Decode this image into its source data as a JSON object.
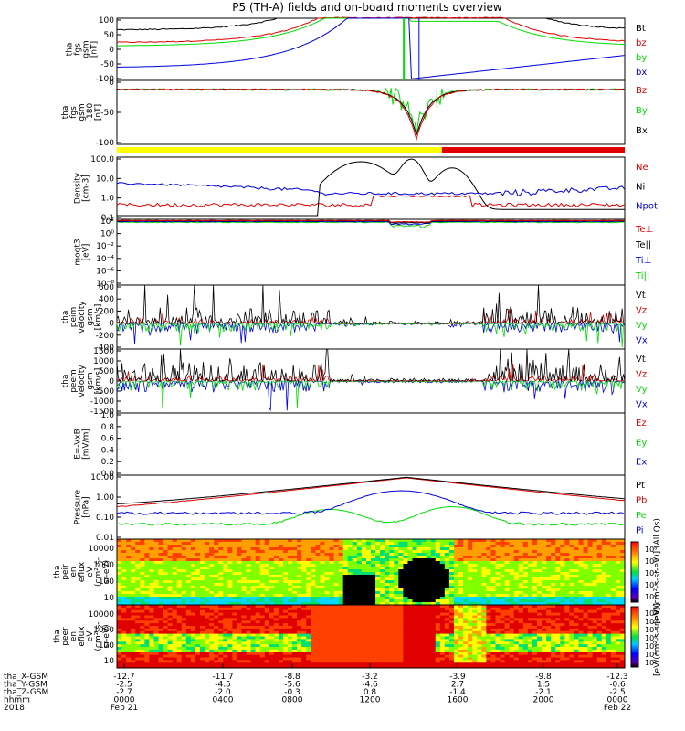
{
  "title": "P5 (TH-A) fields and on-board moments overview",
  "colors": {
    "black": "#000000",
    "red": "#e00000",
    "green": "#00dd00",
    "blue": "#0000e0",
    "yellow": "#ffff00"
  },
  "chart_data": [
    {
      "type": "line",
      "ylabel_lines": [
        "tha",
        "fgs",
        "gsm",
        "[nT]"
      ],
      "ylim": [
        -100,
        100
      ],
      "yticks": [
        "100",
        "50",
        "0",
        "-50",
        "-100"
      ],
      "legend": [
        {
          "name": "Bt",
          "color": "#000000"
        },
        {
          "name": "bz",
          "color": "#e00000"
        },
        {
          "name": "by",
          "color": "#00dd00"
        },
        {
          "name": "bx",
          "color": "#0000e0"
        }
      ]
    },
    {
      "type": "line",
      "ylabel_lines": [
        "tha",
        "fgs",
        "gsm",
        "-180",
        "[nT]"
      ],
      "ylim": [
        -120,
        20
      ],
      "yticks": [
        "0",
        "-50",
        "-100"
      ],
      "legend": [
        {
          "name": "Bz",
          "color": "#e00000"
        },
        {
          "name": "By",
          "color": "#00dd00"
        },
        {
          "name": "Bx",
          "color": "#000000"
        }
      ]
    },
    {
      "type": "line",
      "ylabel_lines": [
        "Density",
        "[cm-3]"
      ],
      "scale": "log",
      "ylim": [
        0.1,
        100
      ],
      "yticks": [
        "100.0",
        "10.0",
        "1.0",
        "0.1"
      ],
      "legend": [
        {
          "name": "Ne",
          "color": "#e00000"
        },
        {
          "name": "Ni",
          "color": "#000000"
        },
        {
          "name": "Npot",
          "color": "#0000e0"
        }
      ]
    },
    {
      "type": "line",
      "ylabel_lines": [
        "moqt3",
        "[eV]"
      ],
      "scale": "log",
      "ylim": [
        1e-08,
        100.0
      ],
      "yticks": [
        "10²",
        "10⁰",
        "10⁻²",
        "10⁻⁴",
        "10⁻⁶",
        "10⁻⁸"
      ],
      "legend": [
        {
          "name": "Te⊥",
          "color": "#e00000"
        },
        {
          "name": "Te||",
          "color": "#000000"
        },
        {
          "name": "Ti⊥",
          "color": "#0000e0"
        },
        {
          "name": "Ti||",
          "color": "#00dd00"
        }
      ]
    },
    {
      "type": "line",
      "ylabel_lines": [
        "tha",
        "peim",
        "velocity",
        "gsm",
        "[km/s]"
      ],
      "ylim": [
        -400,
        600
      ],
      "yticks": [
        "600",
        "400",
        "200",
        "0",
        "-200",
        "-400"
      ],
      "legend": [
        {
          "name": "Vt",
          "color": "#000000"
        },
        {
          "name": "Vz",
          "color": "#e00000"
        },
        {
          "name": "Vy",
          "color": "#00dd00"
        },
        {
          "name": "Vx",
          "color": "#0000e0"
        }
      ]
    },
    {
      "type": "line",
      "ylabel_lines": [
        "tha",
        "peem",
        "velocity",
        "gsm",
        "[km/s]"
      ],
      "ylim": [
        -1500,
        1500
      ],
      "yticks": [
        "1500",
        "1000",
        "500",
        "0",
        "-500",
        "-1000",
        "-1500"
      ],
      "legend": [
        {
          "name": "Vt",
          "color": "#000000"
        },
        {
          "name": "Vz",
          "color": "#e00000"
        },
        {
          "name": "Vy",
          "color": "#00dd00"
        },
        {
          "name": "Vx",
          "color": "#0000e0"
        }
      ]
    },
    {
      "type": "line",
      "ylabel_lines": [
        "E=-VxB",
        "[mV/m]"
      ],
      "ylim": [
        0,
        1
      ],
      "yticks": [
        "1.0",
        "0.8",
        "0.6",
        "0.4",
        "0.2",
        "0.0"
      ],
      "legend": [
        {
          "name": "Ez",
          "color": "#e00000"
        },
        {
          "name": "Ey",
          "color": "#00dd00"
        },
        {
          "name": "Ex",
          "color": "#0000e0"
        }
      ]
    },
    {
      "type": "line",
      "ylabel_lines": [
        "Pressure",
        "[nPa]"
      ],
      "scale": "log",
      "ylim": [
        0.005,
        20
      ],
      "yticks": [
        "10.00",
        "1.00",
        "0.10",
        "0.01"
      ],
      "legend": [
        {
          "name": "Pt",
          "color": "#000000"
        },
        {
          "name": "Pb",
          "color": "#e00000"
        },
        {
          "name": "Pe",
          "color": "#00dd00"
        },
        {
          "name": "Pi",
          "color": "#0000e0"
        }
      ]
    },
    {
      "type": "heatmap",
      "ylabel_lines": [
        "tha",
        "peir",
        "en",
        "eflux",
        "eV",
        "(cm²-s-",
        "sr-eV)"
      ],
      "scale": "log",
      "yticks": [
        "10000",
        "1000",
        "100",
        "10"
      ],
      "colorbar_ticks": [
        "10⁸",
        "10⁶",
        "10⁴",
        "10²",
        "10⁰"
      ]
    },
    {
      "type": "heatmap",
      "ylabel_lines": [
        "tha",
        "peer",
        "en",
        "eflux",
        "eV",
        "(cm²-s-",
        "sr-eV)"
      ],
      "scale": "log",
      "yticks": [
        "10000",
        "1000",
        "100",
        "10"
      ],
      "colorbar_ticks": [
        "10⁹",
        "10⁸",
        "10⁷",
        "10⁶",
        "10⁵",
        "10⁴",
        "10³"
      ]
    }
  ],
  "colorbar_label": "[eV/(cm²-s-sr-eV)] (All Qs)",
  "colorbar_label2": "[eV/(cm²-s-sr-eV)]",
  "footer": {
    "rows": [
      {
        "label": "tha_X-GSM",
        "values": [
          "-12.7",
          "-11.7",
          "-8.8",
          "-3.2",
          "-3.9",
          "-9.8",
          "-12.3"
        ]
      },
      {
        "label": "tha_Y-GSM",
        "values": [
          "-2.5",
          "-4.5",
          "-5.6",
          "-4.6",
          "2.7",
          "1.5",
          "-0.6"
        ]
      },
      {
        "label": "tha_Z-GSM",
        "values": [
          "-2.7",
          "-2.0",
          "-0.3",
          "0.8",
          "-1.4",
          "-2.1",
          "-2.5"
        ]
      },
      {
        "label": "hhmm",
        "values": [
          "0000",
          "0400",
          "0800",
          "1200",
          "1600",
          "2000",
          "0000"
        ]
      }
    ],
    "year": "2018",
    "date_start": "Feb 21",
    "date_end": "Feb 22"
  }
}
